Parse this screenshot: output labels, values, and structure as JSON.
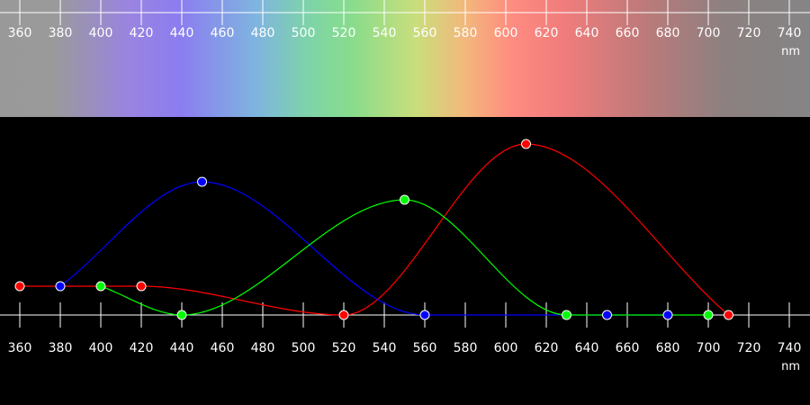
{
  "chart_data": {
    "type": "line",
    "xlabel": "nm",
    "x_ticks": [
      360,
      380,
      400,
      420,
      440,
      460,
      480,
      500,
      520,
      540,
      560,
      580,
      600,
      620,
      640,
      660,
      680,
      700,
      720,
      740
    ],
    "xlim": [
      360,
      740
    ],
    "ylim": [
      0,
      1
    ],
    "grid": false,
    "legend": "none",
    "spectrum_colors": [
      {
        "nm": 360,
        "color": "#999999"
      },
      {
        "nm": 385,
        "color": "#9a9a9a"
      },
      {
        "nm": 420,
        "color": "#9a84e0"
      },
      {
        "nm": 445,
        "color": "#8b7df0"
      },
      {
        "nm": 480,
        "color": "#7fb4e0"
      },
      {
        "nm": 505,
        "color": "#7ed4a8"
      },
      {
        "nm": 525,
        "color": "#88dc8c"
      },
      {
        "nm": 555,
        "color": "#c9de7c"
      },
      {
        "nm": 578,
        "color": "#f2b87c"
      },
      {
        "nm": 600,
        "color": "#ff8c80"
      },
      {
        "nm": 625,
        "color": "#f07c7c"
      },
      {
        "nm": 660,
        "color": "#c07a7a"
      },
      {
        "nm": 700,
        "color": "#8c8080"
      },
      {
        "nm": 740,
        "color": "#858585"
      }
    ],
    "series": [
      {
        "color": "#ff0000",
        "points": [
          {
            "x": 360,
            "y": 0.16
          },
          {
            "x": 420,
            "y": 0.16
          },
          {
            "x": 520,
            "y": 0.0
          },
          {
            "x": 610,
            "y": 0.95
          },
          {
            "x": 710,
            "y": 0.0
          }
        ]
      },
      {
        "color": "#0000ff",
        "points": [
          {
            "x": 380,
            "y": 0.16
          },
          {
            "x": 450,
            "y": 0.74
          },
          {
            "x": 560,
            "y": 0.0
          },
          {
            "x": 650,
            "y": 0.0
          },
          {
            "x": 680,
            "y": 0.0
          }
        ]
      },
      {
        "color": "#00ff00",
        "points": [
          {
            "x": 400,
            "y": 0.16
          },
          {
            "x": 440,
            "y": 0.0
          },
          {
            "x": 550,
            "y": 0.64
          },
          {
            "x": 630,
            "y": 0.0
          },
          {
            "x": 700,
            "y": 0.0
          }
        ]
      }
    ]
  }
}
